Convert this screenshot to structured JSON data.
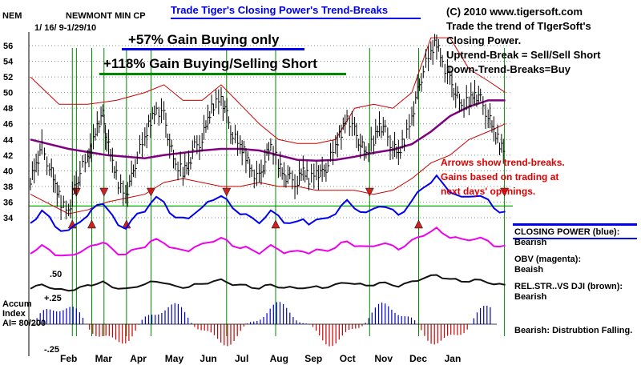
{
  "header": {
    "ticker": "NEM",
    "name": "NEWMONT MIN CP",
    "dates": "1/ 16/ 9-1/29/10",
    "title": "Trade Tiger's Closing Power's Trend-Breaks",
    "copyright": "(C) 2010 www.tigersoft.com"
  },
  "notes": {
    "intro_1": "Trade the trend of TIgerSoft's",
    "intro_2": "Closing Power.",
    "rule_1": "Uptrend-Break = Sell/Sell Short",
    "rule_2": "Down-Trend-Breaks=Buy",
    "arrows_1": "Arrows show trend-breaks.",
    "arrows_2": "Gains based on trading at",
    "arrows_3": "next days' openings.",
    "gain_buy": "+57% Gain Buying only",
    "gain_both": "+118% Gain Buying/Selling Short"
  },
  "legend": {
    "cp_label": "CLOSING POWER (blue):",
    "cp_status": "Bearish",
    "obv_label": "OBV (magenta):",
    "obv_status": "Beaish",
    "rel_label": "REL.STR..VS DJI (brown):",
    "rel_status": "Bearish",
    "accum_status": "Bearish:  Distrubtion Falling."
  },
  "accum": {
    "label_1": "Accum",
    "label_2": "Index",
    "label_3": "AI= 80/200",
    "level_50": ".50",
    "level_25": "+.25",
    "level_neg25": "-.25"
  },
  "colors": {
    "price": "#000000",
    "closing_power": "#0000ee",
    "obv": "#ee00ee",
    "rel_strength": "#111111",
    "ma_long": "#800080",
    "bands": "#cc0000",
    "signal_lines": "#008800",
    "accum_pos": "#0000cc",
    "accum_neg": "#cc0000",
    "title_text": "#0000ee"
  },
  "chart_data": {
    "type": "line",
    "x_months": [
      "Feb",
      "Mar",
      "Apr",
      "May",
      "Jun",
      "Jul",
      "Aug",
      "Sep",
      "Oct",
      "Nov",
      "Dec",
      "Jan"
    ],
    "y_ticks": [
      34,
      36,
      38,
      40,
      42,
      44,
      46,
      48,
      50,
      52,
      54,
      56
    ],
    "ylim": [
      33,
      57.5
    ],
    "reference_level": 35.5,
    "price_close": [
      [
        0.0,
        39
      ],
      [
        0.3,
        41
      ],
      [
        0.6,
        43
      ],
      [
        1.0,
        40.5
      ],
      [
        1.3,
        38
      ],
      [
        1.6,
        36
      ],
      [
        2.0,
        35
      ],
      [
        2.3,
        37.5
      ],
      [
        2.6,
        40
      ],
      [
        3.0,
        41.5
      ],
      [
        3.2,
        43
      ],
      [
        3.5,
        46
      ],
      [
        3.8,
        47
      ],
      [
        4.0,
        44
      ],
      [
        4.3,
        41
      ],
      [
        4.6,
        38.5
      ],
      [
        5.0,
        37
      ],
      [
        5.3,
        39
      ],
      [
        5.6,
        42
      ],
      [
        6.0,
        44
      ],
      [
        6.3,
        46.5
      ],
      [
        6.6,
        48
      ],
      [
        7.0,
        47
      ],
      [
        7.3,
        43.5
      ],
      [
        7.6,
        40.5
      ],
      [
        8.0,
        40
      ],
      [
        8.3,
        41
      ],
      [
        8.6,
        43
      ],
      [
        9.0,
        44
      ],
      [
        9.3,
        46.5
      ],
      [
        9.6,
        48.5
      ],
      [
        10.0,
        49.5
      ],
      [
        10.3,
        47
      ],
      [
        10.6,
        44.5
      ],
      [
        11.0,
        43
      ],
      [
        11.3,
        42
      ],
      [
        11.6,
        40
      ],
      [
        12.0,
        39
      ],
      [
        12.3,
        41.5
      ],
      [
        12.6,
        43
      ],
      [
        13.0,
        41
      ],
      [
        13.3,
        39.5
      ],
      [
        13.6,
        39
      ],
      [
        14.0,
        38.5
      ],
      [
        14.3,
        40
      ],
      [
        14.6,
        39
      ],
      [
        15.0,
        40
      ],
      [
        15.3,
        39.5
      ],
      [
        15.6,
        41
      ],
      [
        16.0,
        43
      ],
      [
        16.3,
        45
      ],
      [
        16.6,
        47
      ],
      [
        17.0,
        45
      ],
      [
        17.3,
        43.5
      ],
      [
        17.6,
        42
      ],
      [
        18.0,
        44
      ],
      [
        18.3,
        46
      ],
      [
        18.6,
        45
      ],
      [
        19.0,
        43
      ],
      [
        19.3,
        42
      ],
      [
        19.6,
        44
      ],
      [
        20.0,
        47
      ],
      [
        20.3,
        50
      ],
      [
        20.6,
        53
      ],
      [
        21.0,
        55
      ],
      [
        21.3,
        56.5
      ],
      [
        21.6,
        54
      ],
      [
        22.0,
        51.5
      ],
      [
        22.3,
        50
      ],
      [
        22.6,
        48
      ],
      [
        23.0,
        49
      ],
      [
        23.3,
        50
      ],
      [
        23.6,
        49
      ],
      [
        24.0,
        47
      ],
      [
        24.3,
        45
      ],
      [
        24.6,
        43.5
      ],
      [
        24.9,
        42.5
      ]
    ],
    "ma_long": [
      [
        0.0,
        44
      ],
      [
        2.0,
        42.8
      ],
      [
        4.0,
        42
      ],
      [
        6.0,
        41.6
      ],
      [
        7.0,
        42
      ],
      [
        8.0,
        42.3
      ],
      [
        9.0,
        42.6
      ],
      [
        10.0,
        42.8
      ],
      [
        11.0,
        42.8
      ],
      [
        12.0,
        42.6
      ],
      [
        13.0,
        42
      ],
      [
        14.0,
        41.4
      ],
      [
        15.0,
        41.3
      ],
      [
        16.0,
        41.4
      ],
      [
        17.0,
        41.8
      ],
      [
        18.0,
        42.3
      ],
      [
        19.0,
        42.7
      ],
      [
        20.0,
        43.4
      ],
      [
        21.0,
        45
      ],
      [
        22.0,
        47
      ],
      [
        23.0,
        48.2
      ],
      [
        24.0,
        49
      ],
      [
        24.9,
        49
      ]
    ],
    "upper_band": [
      [
        0.0,
        52
      ],
      [
        1.5,
        48.5
      ],
      [
        3.0,
        48.5
      ],
      [
        4.5,
        49
      ],
      [
        6.0,
        50
      ],
      [
        7.0,
        51
      ],
      [
        8.0,
        49
      ],
      [
        9.0,
        49
      ],
      [
        10.0,
        51
      ],
      [
        11.0,
        48.5
      ],
      [
        12.0,
        46
      ],
      [
        13.0,
        44
      ],
      [
        14.0,
        43.5
      ],
      [
        15.0,
        43.5
      ],
      [
        16.0,
        44
      ],
      [
        17.0,
        48
      ],
      [
        18.0,
        48.5
      ],
      [
        19.0,
        48
      ],
      [
        20.0,
        50
      ],
      [
        21.0,
        57
      ],
      [
        22.0,
        57
      ],
      [
        23.0,
        53
      ],
      [
        24.0,
        51.5
      ],
      [
        24.9,
        50
      ]
    ],
    "lower_band": [
      [
        0.0,
        37
      ],
      [
        2.0,
        34.5
      ],
      [
        3.0,
        35
      ],
      [
        4.0,
        36
      ],
      [
        5.0,
        36.5
      ],
      [
        6.0,
        37
      ],
      [
        7.0,
        38.5
      ],
      [
        8.0,
        39
      ],
      [
        9.0,
        38.5
      ],
      [
        10.0,
        38
      ],
      [
        11.0,
        38
      ],
      [
        12.0,
        38.5
      ],
      [
        13.0,
        38
      ],
      [
        14.0,
        38
      ],
      [
        15.0,
        37.5
      ],
      [
        16.0,
        37.5
      ],
      [
        17.0,
        37.5
      ],
      [
        18.0,
        37
      ],
      [
        19.0,
        37.5
      ],
      [
        20.0,
        39
      ],
      [
        21.0,
        41
      ],
      [
        22.0,
        42
      ],
      [
        23.0,
        44
      ],
      [
        24.0,
        45
      ],
      [
        24.9,
        46
      ]
    ],
    "signal_months_x": [
      2.05,
      2.25,
      3.0,
      3.6,
      4.7,
      5.9,
      9.6,
      12.0,
      16.6,
      19.0,
      23.2
    ],
    "signal_dir": [
      "buy",
      "sell",
      "buy",
      "sell",
      "buy",
      "sell",
      "sell",
      "buy",
      "sell",
      "buy",
      "sell"
    ]
  }
}
